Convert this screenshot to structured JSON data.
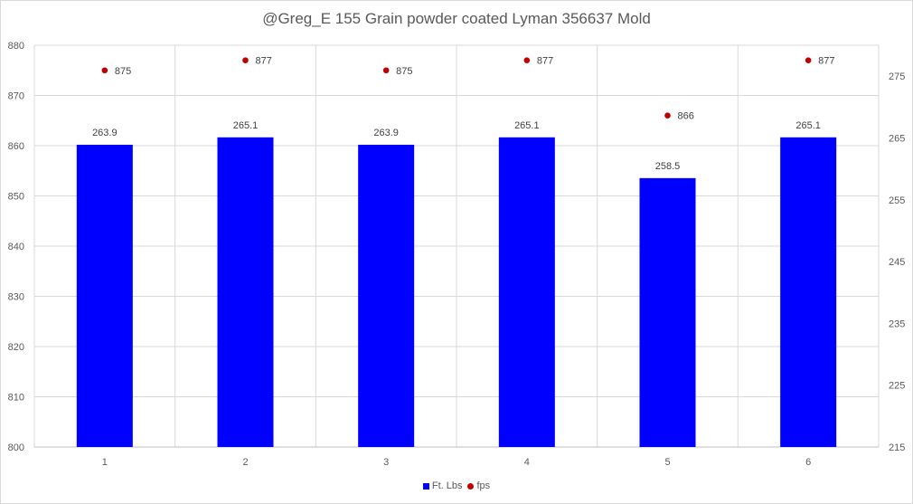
{
  "chart_data": {
    "type": "bar",
    "title": "@Greg_E 155 Grain powder coated Lyman 356637 Mold",
    "categories": [
      "1",
      "2",
      "3",
      "4",
      "5",
      "6"
    ],
    "series": [
      {
        "name": "Ft. Lbs",
        "type": "bar",
        "axis": "secondary",
        "color": "#0000ff",
        "values": [
          263.9,
          265.1,
          263.9,
          265.1,
          258.5,
          265.1
        ],
        "labels": [
          "263.9",
          "265.1",
          "263.9",
          "265.1",
          "258.5",
          "265.1"
        ]
      },
      {
        "name": "fps",
        "type": "scatter",
        "axis": "primary",
        "color": "#c00000",
        "values": [
          875,
          877,
          875,
          877,
          866,
          877
        ],
        "labels": [
          "875",
          "877",
          "875",
          "877",
          "866",
          "877"
        ]
      }
    ],
    "primary_axis": {
      "range": [
        800,
        880
      ],
      "ticks": [
        "800",
        "810",
        "820",
        "830",
        "840",
        "850",
        "860",
        "870",
        "880"
      ]
    },
    "secondary_axis": {
      "range": [
        215,
        280
      ],
      "ticks": [
        "215",
        "225",
        "235",
        "245",
        "255",
        "265",
        "275"
      ]
    },
    "grid": true,
    "legend_position": "bottom"
  }
}
